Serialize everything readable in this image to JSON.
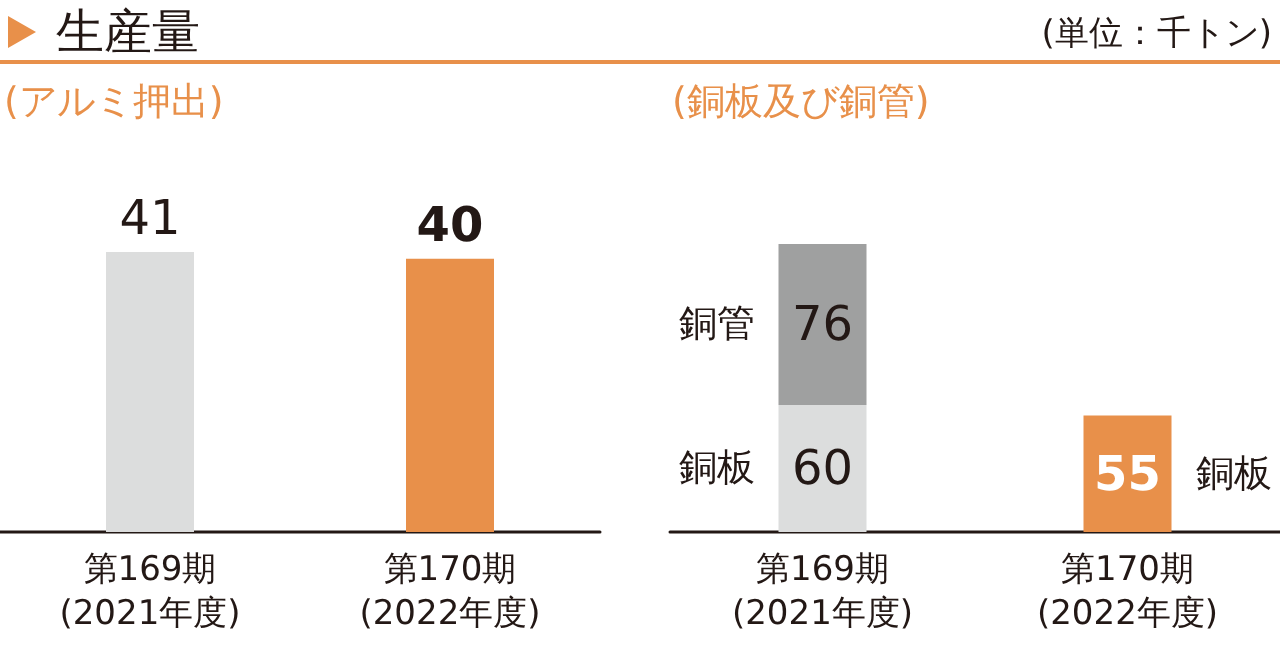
{
  "chart_data": [
    {
      "type": "bar",
      "title": "生産量",
      "subtitle": "(アルミ押出)",
      "annotations": [
        "(単位：千トン)"
      ],
      "categories": [
        "第169期\n(2021年度)",
        "第170期\n(2022年度)"
      ],
      "series": [
        {
          "values": [
            41,
            40
          ],
          "colors": [
            "#dcdddd",
            "#e8904a"
          ]
        }
      ],
      "data_labels": true,
      "legend": false
    },
    {
      "type": "bar",
      "subtitle": "(銅板及び銅管)",
      "categories": [
        "第169期\n(2021年度)",
        "第170期\n(2022年度)"
      ],
      "stacked": true,
      "series": [
        {
          "name": "銅板",
          "values": [
            60,
            55
          ],
          "colors": [
            "#dcdddd",
            "#e8904a"
          ]
        },
        {
          "name": "銅管",
          "values": [
            76,
            null
          ],
          "colors": [
            "#9fa0a0",
            null
          ]
        }
      ],
      "data_labels": true,
      "legend": false
    }
  ]
}
